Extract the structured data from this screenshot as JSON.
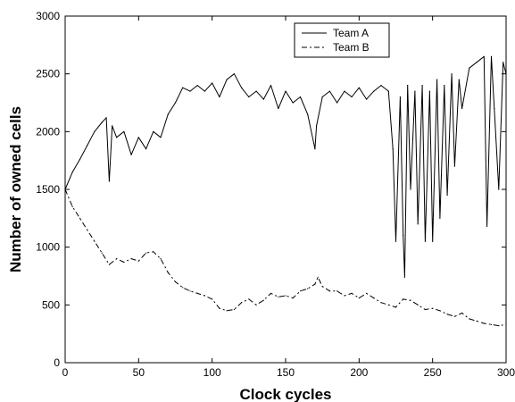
{
  "chart_data": {
    "type": "line",
    "title": "",
    "xlabel": "Clock cycles",
    "ylabel": "Number of owned cells",
    "xlim": [
      0,
      300
    ],
    "ylim": [
      0,
      3000
    ],
    "xticks": [
      0,
      50,
      100,
      150,
      200,
      250,
      300
    ],
    "yticks": [
      0,
      500,
      1000,
      1500,
      2000,
      2500,
      3000
    ],
    "grid": false,
    "legend_position": "top-right",
    "series": [
      {
        "name": "Team A",
        "line_style": "solid",
        "color": "#000000",
        "x": [
          0,
          5,
          10,
          15,
          20,
          25,
          28,
          30,
          32,
          35,
          40,
          45,
          50,
          55,
          60,
          65,
          70,
          75,
          80,
          85,
          90,
          95,
          100,
          105,
          110,
          115,
          120,
          125,
          130,
          135,
          140,
          145,
          150,
          155,
          160,
          165,
          170,
          171,
          175,
          180,
          185,
          190,
          195,
          200,
          205,
          210,
          215,
          220,
          223,
          225,
          228,
          230,
          231,
          233,
          235,
          238,
          240,
          243,
          245,
          248,
          250,
          253,
          255,
          258,
          260,
          263,
          265,
          268,
          270,
          275,
          280,
          285,
          287,
          290,
          292,
          295,
          298,
          300
        ],
        "values": [
          1500,
          1650,
          1760,
          1880,
          2000,
          2080,
          2120,
          1570,
          2050,
          1950,
          2000,
          1800,
          1950,
          1850,
          2000,
          1950,
          2150,
          2250,
          2380,
          2350,
          2400,
          2350,
          2420,
          2300,
          2450,
          2500,
          2380,
          2300,
          2350,
          2280,
          2400,
          2200,
          2350,
          2250,
          2300,
          2150,
          1850,
          2050,
          2300,
          2350,
          2250,
          2350,
          2300,
          2380,
          2280,
          2350,
          2400,
          2350,
          1850,
          1050,
          2300,
          1100,
          740,
          2400,
          1500,
          2350,
          1200,
          2400,
          1050,
          2350,
          1050,
          2450,
          1250,
          2400,
          1450,
          2500,
          1700,
          2450,
          2200,
          2550,
          2600,
          2650,
          1180,
          2650,
          2200,
          1500,
          2600,
          2500
        ]
      },
      {
        "name": "Team B",
        "line_style": "dashed",
        "color": "#000000",
        "x": [
          0,
          5,
          10,
          15,
          20,
          25,
          30,
          35,
          40,
          45,
          50,
          55,
          60,
          65,
          70,
          75,
          80,
          85,
          90,
          95,
          100,
          105,
          110,
          115,
          120,
          125,
          130,
          135,
          140,
          145,
          150,
          155,
          160,
          165,
          170,
          172,
          175,
          180,
          185,
          190,
          195,
          200,
          205,
          210,
          215,
          220,
          225,
          230,
          235,
          240,
          245,
          250,
          255,
          260,
          265,
          270,
          275,
          280,
          285,
          290,
          295,
          300
        ],
        "values": [
          1500,
          1350,
          1250,
          1150,
          1050,
          950,
          850,
          900,
          870,
          900,
          880,
          950,
          960,
          900,
          780,
          700,
          650,
          620,
          600,
          580,
          550,
          470,
          450,
          460,
          520,
          550,
          500,
          540,
          600,
          570,
          580,
          560,
          620,
          640,
          680,
          740,
          660,
          620,
          620,
          580,
          600,
          560,
          600,
          560,
          520,
          500,
          480,
          550,
          540,
          500,
          460,
          470,
          450,
          420,
          400,
          430,
          380,
          360,
          340,
          330,
          320,
          330
        ]
      }
    ]
  }
}
